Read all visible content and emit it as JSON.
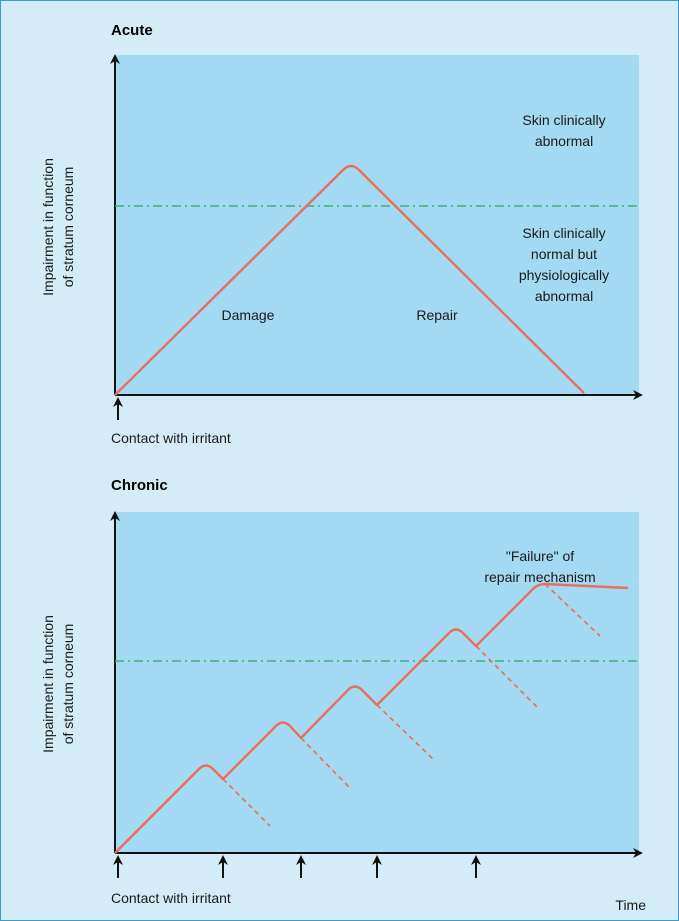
{
  "colors": {
    "background": "#d3ecf8",
    "plot_area": "#a3d9f2",
    "curve": "#e8705a",
    "threshold": "#3fb07a",
    "border": "#3c9ccf"
  },
  "acute": {
    "title": "Acute",
    "ylabel_line1": "Impairment in function",
    "ylabel_line2": "of stratum corneum",
    "region_above_line1": "Skin clinically",
    "region_above_line2": "abnormal",
    "region_below_line1": "Skin clinically",
    "region_below_line2": "normal but",
    "region_below_line3": "physiologically",
    "region_below_line4": "abnormal",
    "damage_label": "Damage",
    "repair_label": "Repair",
    "contact_label": "Contact with irritant"
  },
  "chronic": {
    "title": "Chronic",
    "ylabel_line1": "Impairment in function",
    "ylabel_line2": "of stratum corneum",
    "failure_line1": "\"Failure\" of",
    "failure_line2": "repair mechanism",
    "contact_label": "Contact with irritant",
    "time_label": "Time"
  }
}
